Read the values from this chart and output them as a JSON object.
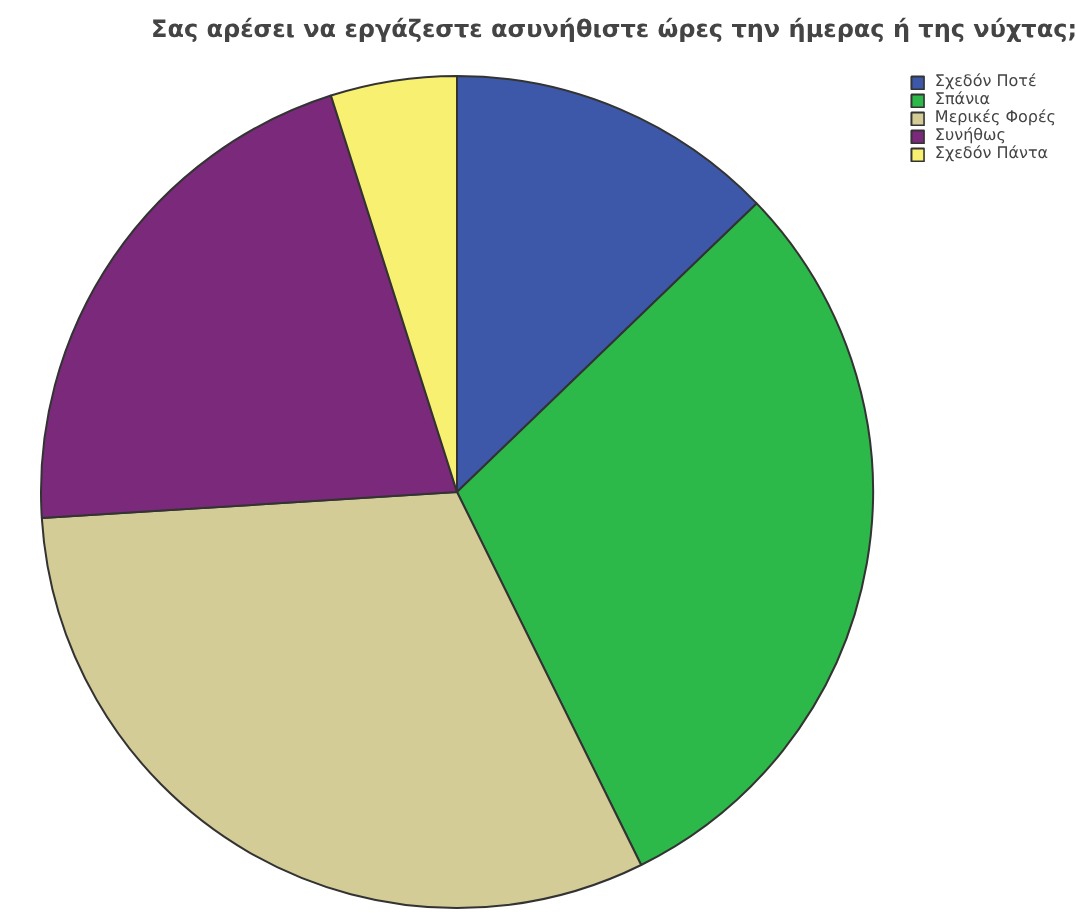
{
  "chart_data": {
    "type": "pie",
    "title": "Σας αρέσει να εργάζεστε ασυνήθιστε ώρες την ήμερας ή της νύχτας;",
    "categories": [
      "Σχεδόν Ποτέ",
      "Σπάνια",
      "Μερικές Φορές",
      "Συνήθως",
      "Σχεδόν Πάντα"
    ],
    "values": [
      12.8,
      29.9,
      31.3,
      21.1,
      4.9
    ],
    "colors": [
      "#3d58a8",
      "#2db84a",
      "#d4cc96",
      "#7b2a7b",
      "#f7f070"
    ],
    "legend": "top right"
  }
}
